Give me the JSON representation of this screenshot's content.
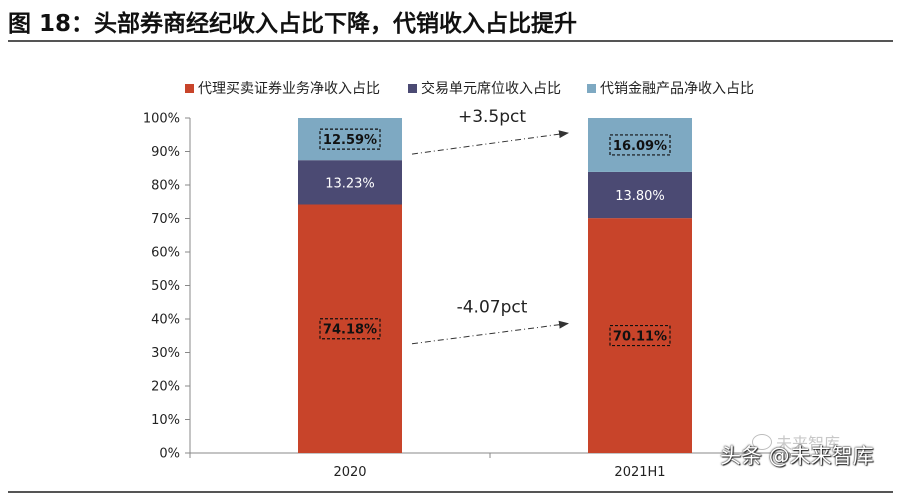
{
  "figure": {
    "title": "图 18：头部券商经纪收入占比下降，代销收入占比提升"
  },
  "chart_data": {
    "type": "bar",
    "stacked": true,
    "percent": true,
    "categories": [
      "2020",
      "2021H1"
    ],
    "series": [
      {
        "name": "代理买卖证券业务净收入占比",
        "values": [
          74.18,
          70.11
        ],
        "labels": [
          "74.18%",
          "70.11%"
        ],
        "color": "#C8442A"
      },
      {
        "name": "交易单元席位收入占比",
        "values": [
          13.23,
          13.8
        ],
        "labels": [
          "13.23%",
          "13.80%"
        ],
        "color": "#4B4A73"
      },
      {
        "name": "代销金融产品净收入占比",
        "values": [
          12.59,
          16.09
        ],
        "labels": [
          "12.59%",
          "16.09%"
        ],
        "color": "#7EA9C2"
      }
    ],
    "ylim": [
      0,
      100
    ],
    "yticks": [
      "0%",
      "10%",
      "20%",
      "30%",
      "40%",
      "50%",
      "60%",
      "70%",
      "80%",
      "90%",
      "100%"
    ],
    "legend_position": "top",
    "annotations": [
      {
        "text": "+3.5pct",
        "series": "代销金融产品净收入占比"
      },
      {
        "text": "-4.07pct",
        "series": "代理买卖证券业务净收入占比"
      }
    ]
  },
  "watermark": {
    "top_text": "未来智库",
    "main_text": "头条 @未来智库"
  }
}
